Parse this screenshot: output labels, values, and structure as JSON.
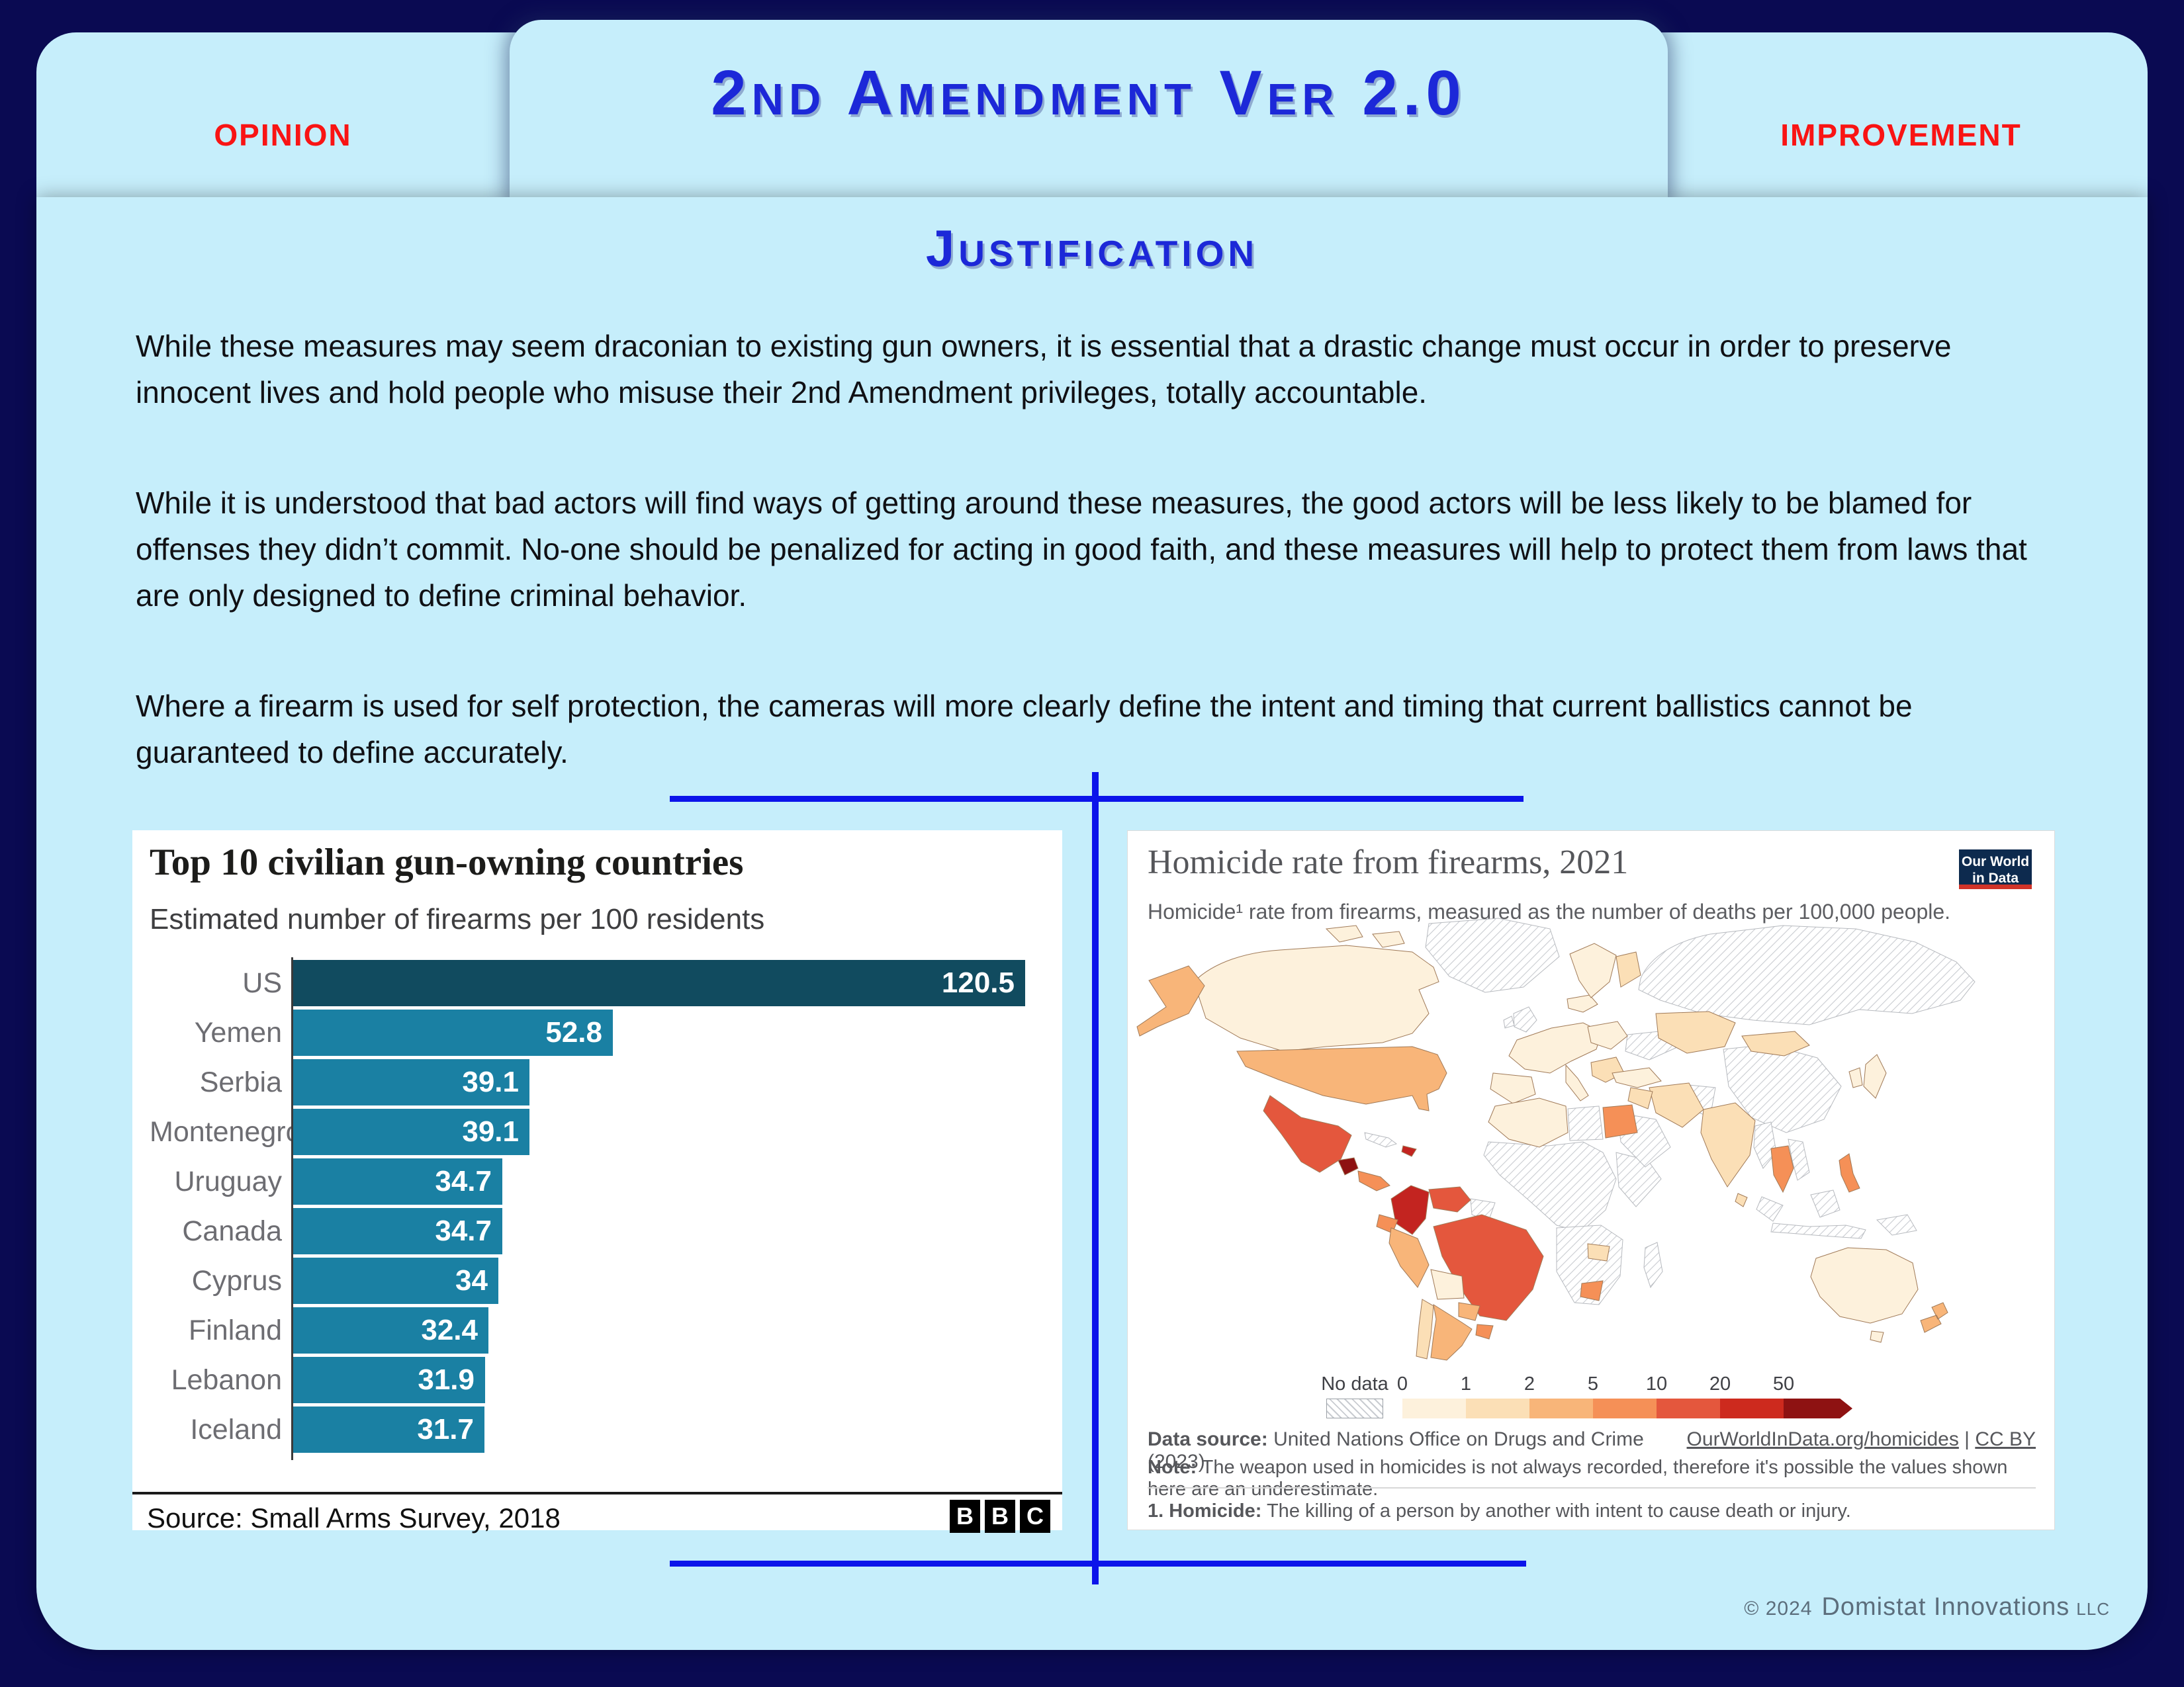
{
  "slide": {
    "tab_left": "OPINION",
    "tab_right": "IMPROVEMENT",
    "title": "2nd Amendment Ver 2.0",
    "section_title": "Justification",
    "accent_blue": "#1c28d8",
    "accent_red": "#f91414",
    "divider_blue": "#0c14ea",
    "card_color": "#c6eefb",
    "background_color": "#0a0a52",
    "paragraphs": [
      "While these measures may seem draconian to existing gun owners, it is essential that a drastic change must occur in order to preserve innocent lives and hold people who misuse their 2nd Amendment privileges, totally accountable.",
      "While it is understood that bad actors will find ways of getting around these measures, the good actors will be less likely to be blamed for offenses they didn’t commit. No-one should be penalized for acting in good faith, and these measures will help to protect them from laws that are only designed to define criminal behavior.",
      "Where a firearm is used for self protection, the cameras will more clearly define the intent and timing that current ballistics cannot be guaranteed to define accurately."
    ],
    "footer": {
      "copyright": "© 2024",
      "company": "Domistat Innovations",
      "suffix": "LLC"
    }
  },
  "bbc": {
    "title": "Top 10 civilian gun-owning countries",
    "subtitle": "Estimated number of firearms per 100 residents",
    "source": "Source: Small Arms Survey, 2018",
    "logo_letters": [
      "B",
      "B",
      "C"
    ],
    "colors": {
      "us_bar": "#114b5f",
      "bar": "#1a80a3",
      "category_label": "#6d6d72",
      "value_label": "#ffffff"
    },
    "values_display": [
      "120.5",
      "52.8",
      "39.1",
      "39.1",
      "34.7",
      "34.7",
      "34",
      "32.4",
      "31.9",
      "31.7"
    ],
    "chart_data": {
      "type": "bar",
      "orientation": "horizontal",
      "title": "Top 10 civilian gun-owning countries",
      "subtitle": "Estimated number of firearms per 100 residents",
      "categories": [
        "US",
        "Yemen",
        "Serbia",
        "Montenegro",
        "Uruguay",
        "Canada",
        "Cyprus",
        "Finland",
        "Lebanon",
        "Iceland"
      ],
      "values": [
        120.5,
        52.8,
        39.1,
        39.1,
        34.7,
        34.7,
        34,
        32.4,
        31.9,
        31.7
      ],
      "xlabel": "",
      "ylabel": "",
      "xlim": [
        0,
        130
      ],
      "grid": false,
      "value_labels": "inside-end, white",
      "source": "Small Arms Survey, 2018"
    }
  },
  "owid": {
    "title": "Homicide rate from firearms, 2021",
    "subtitle": "Homicide¹ rate from firearms, measured as the number of deaths per 100,000 people.",
    "logo": {
      "line1": "Our World",
      "line2": "in Data",
      "bg": "#0d2a4e",
      "accent": "#d13328"
    },
    "legend": {
      "no_data_label": "No data",
      "ticks": [
        "0",
        "1",
        "2",
        "5",
        "10",
        "20",
        "50"
      ],
      "colors": [
        "#fdf1dc",
        "#fbdfb6",
        "#f8b579",
        "#f59057",
        "#e4573d",
        "#cd2a1e",
        "#8e1212"
      ]
    },
    "map_palette": {
      "c0": "#fdf1dc",
      "c1": "#fbdfb6",
      "c2": "#f8b579",
      "c3": "#f59057",
      "c4": "#e4573d",
      "c5": "#c32420",
      "c6": "#8e1212"
    },
    "datasource_label": "Data source:",
    "datasource": " United Nations Office on Drugs and Crime (2023)",
    "link1": "OurWorldInData.org/homicides",
    "link_sep": " | ",
    "link2": "CC BY",
    "note_label": "Note:",
    "note": " The weapon used in homicides is not always recorded, therefore it's possible the values shown here are an underestimate.",
    "footnote_label": "1. Homicide:",
    "footnote": " The killing of a person by another with intent to cause death or injury.",
    "chart_data": {
      "type": "heatmap",
      "subtype": "choropleth_world_map",
      "title": "Homicide rate from firearms, 2021",
      "metric": "Homicide rate from firearms (deaths per 100,000 people)",
      "year": 2021,
      "bins": [
        "0-1",
        "1-2",
        "2-5",
        "5-10",
        "10-20",
        "20-50",
        "50+"
      ],
      "bin_colors": [
        "#fdf1dc",
        "#fbdfb6",
        "#f8b579",
        "#f59057",
        "#e4573d",
        "#cd2a1e",
        "#8e1212"
      ],
      "no_data_style": "gray diagonal hatching",
      "legend_position": "bottom-center",
      "country_bins": {
        "Canada": "0-1",
        "United States": "2-5",
        "Alaska (US)": "2-5",
        "Mexico": "10-20",
        "Guatemala": "50+",
        "Costa Rica / Panama": "5-10",
        "Cuba": "no data",
        "Haiti / Dominican Rep.": "20-50",
        "Colombia": "20-50",
        "Venezuela": "10-20",
        "Brazil": "10-20",
        "Ecuador": "5-10",
        "Peru": "2-5",
        "Bolivia": "0-1",
        "Paraguay": "2-5",
        "Uruguay": "5-10",
        "Argentina": "2-5",
        "Chile": "1-2",
        "Greenland": "no data",
        "Iceland": "0-1",
        "United Kingdom": "no data",
        "Western Europe": "0-1",
        "Scandinavia": "0-1",
        "Finland": "1-2",
        "Balkans": "1-2",
        "Ukraine": "no data",
        "Russia": "no data",
        "Kazakhstan": "1-2",
        "Mongolia": "1-2",
        "China": "no data",
        "Turkey": "0-1",
        "Iran": "1-2",
        "Iraq": "1-2",
        "Saudi Arabia": "no data",
        "Morocco / Algeria": "0-1",
        "Libya": "no data",
        "Egypt": "5-10",
        "Sub-Saharan Africa": "no data",
        "Zambia": "1-2",
        "South Africa (tip)": "5-10",
        "Madagascar": "no data",
        "India": "1-2",
        "Pakistan / Afghanistan": "no data",
        "Myanmar": "no data",
        "Thailand": "5-10",
        "Vietnam / Laos": "no data",
        "Philippines": "5-10",
        "Indonesia": "no data",
        "Papua New Guinea": "no data",
        "Japan": "0-1",
        "South Korea": "0-1",
        "Sri Lanka": "1-2",
        "Australia": "0-1",
        "New Zealand": "2-5"
      }
    }
  }
}
